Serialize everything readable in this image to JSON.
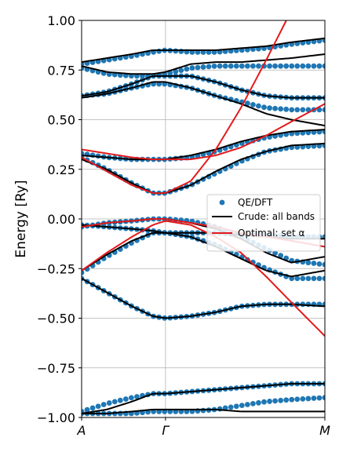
{
  "chart_data": {
    "type": "line",
    "ylabel": "Energy [Ry]",
    "ylim": [
      -1.0,
      1.0
    ],
    "yticks": [
      -1.0,
      -0.75,
      -0.5,
      -0.25,
      0.0,
      0.25,
      0.5,
      0.75,
      1.0
    ],
    "ytick_labels": [
      "−1.00",
      "−0.75",
      "−0.50",
      "−0.25",
      "0.00",
      "0.25",
      "0.50",
      "0.75",
      "1.00"
    ],
    "xlim": [
      0,
      2.9
    ],
    "xticks": [
      0,
      1,
      2.9
    ],
    "xtick_labels": [
      "A",
      "Γ",
      "M"
    ],
    "grid": true,
    "legend_position": "center-right",
    "colors": {
      "dft": "#1f77b4",
      "crude": "#000000",
      "optimal": "#e31a1c"
    },
    "series": [
      {
        "name": "QE/DFT",
        "style": "markers",
        "bands": [
          {
            "x": [
              0,
              0.3,
              0.6,
              0.85,
              1.0,
              1.3,
              1.6,
              1.9,
              2.2,
              2.5,
              2.9
            ],
            "y": [
              -0.3,
              -0.37,
              -0.44,
              -0.49,
              -0.5,
              -0.49,
              -0.47,
              -0.44,
              -0.43,
              -0.43,
              -0.43
            ]
          },
          {
            "x": [
              0,
              0.3,
              0.6,
              0.85,
              1.0,
              1.3,
              1.6,
              1.9,
              2.2,
              2.5,
              2.9
            ],
            "y": [
              -0.27,
              -0.19,
              -0.12,
              -0.07,
              -0.07,
              -0.09,
              -0.13,
              -0.19,
              -0.25,
              -0.3,
              -0.3
            ]
          },
          {
            "x": [
              0,
              0.3,
              0.6,
              0.85,
              1.0,
              1.3,
              1.6,
              1.9,
              2.2,
              2.5,
              2.9
            ],
            "y": [
              -0.04,
              -0.02,
              -0.01,
              0.0,
              0.0,
              -0.01,
              -0.04,
              -0.09,
              -0.15,
              -0.21,
              -0.23
            ]
          },
          {
            "x": [
              0,
              0.3,
              0.6,
              0.85,
              1.0,
              1.3,
              1.6,
              1.9,
              2.2,
              2.5,
              2.9
            ],
            "y": [
              -0.03,
              -0.04,
              -0.05,
              -0.06,
              -0.07,
              -0.07,
              -0.07,
              -0.08,
              -0.08,
              -0.09,
              -0.09
            ]
          },
          {
            "x": [
              0,
              0.3,
              0.6,
              0.85,
              1.0,
              1.3,
              1.6,
              1.9,
              2.2,
              2.5,
              2.9
            ],
            "y": [
              0.31,
              0.25,
              0.18,
              0.13,
              0.13,
              0.17,
              0.23,
              0.29,
              0.34,
              0.36,
              0.37
            ]
          },
          {
            "x": [
              0,
              0.3,
              0.6,
              0.85,
              1.0,
              1.3,
              1.6,
              1.9,
              2.2,
              2.5,
              2.9
            ],
            "y": [
              0.33,
              0.31,
              0.3,
              0.3,
              0.3,
              0.31,
              0.34,
              0.38,
              0.41,
              0.43,
              0.44
            ]
          },
          {
            "x": [
              0,
              0.3,
              0.6,
              0.85,
              1.0,
              1.3,
              1.6,
              1.9,
              2.2,
              2.5,
              2.9
            ],
            "y": [
              0.62,
              0.63,
              0.66,
              0.68,
              0.68,
              0.66,
              0.62,
              0.59,
              0.56,
              0.55,
              0.55
            ]
          },
          {
            "x": [
              0,
              0.3,
              0.6,
              0.85,
              1.0,
              1.3,
              1.6,
              1.9,
              2.2,
              2.5,
              2.9
            ],
            "y": [
              0.62,
              0.64,
              0.68,
              0.72,
              0.72,
              0.72,
              0.69,
              0.65,
              0.62,
              0.61,
              0.61
            ]
          },
          {
            "x": [
              0,
              0.3,
              0.6,
              0.85,
              1.0,
              1.3,
              1.6,
              1.9,
              2.2,
              2.5,
              2.9
            ],
            "y": [
              0.76,
              0.73,
              0.72,
              0.72,
              0.73,
              0.76,
              0.77,
              0.77,
              0.77,
              0.77,
              0.77
            ]
          },
          {
            "x": [
              0,
              0.3,
              0.6,
              0.85,
              1.0,
              1.3,
              1.6,
              1.9,
              2.2,
              2.5,
              2.9
            ],
            "y": [
              0.78,
              0.8,
              0.82,
              0.84,
              0.85,
              0.84,
              0.84,
              0.85,
              0.86,
              0.88,
              0.9
            ]
          },
          {
            "x": [
              0,
              0.3,
              0.6,
              0.85,
              1.0,
              1.3,
              1.6,
              1.9,
              2.2,
              2.5,
              2.9
            ],
            "y": [
              -0.97,
              -0.93,
              -0.9,
              -0.88,
              -0.88,
              -0.87,
              -0.86,
              -0.85,
              -0.84,
              -0.83,
              -0.83
            ]
          },
          {
            "x": [
              0,
              0.3,
              0.6,
              0.85,
              1.0,
              1.3,
              1.6,
              1.9,
              2.2,
              2.5,
              2.9
            ],
            "y": [
              -0.98,
              -0.98,
              -0.98,
              -0.97,
              -0.97,
              -0.97,
              -0.96,
              -0.94,
              -0.92,
              -0.91,
              -0.9
            ]
          }
        ]
      },
      {
        "name": "Crude: all bands",
        "style": "line",
        "bands": [
          {
            "x": [
              0,
              0.3,
              0.6,
              0.85,
              1.0,
              1.3,
              1.6,
              1.9,
              2.2,
              2.5,
              2.9
            ],
            "y": [
              -0.3,
              -0.37,
              -0.44,
              -0.49,
              -0.5,
              -0.49,
              -0.47,
              -0.44,
              -0.43,
              -0.43,
              -0.44
            ]
          },
          {
            "x": [
              0,
              0.3,
              0.6,
              0.85,
              1.0,
              1.3,
              1.6,
              1.9,
              2.2,
              2.5,
              2.9
            ],
            "y": [
              -0.26,
              -0.18,
              -0.11,
              -0.07,
              -0.07,
              -0.09,
              -0.14,
              -0.2,
              -0.26,
              -0.29,
              -0.26
            ]
          },
          {
            "x": [
              0,
              0.3,
              0.6,
              0.85,
              1.0,
              1.3,
              1.6,
              1.9,
              2.2,
              2.5,
              2.9
            ],
            "y": [
              -0.04,
              -0.02,
              -0.01,
              0.0,
              0.0,
              -0.02,
              -0.05,
              -0.1,
              -0.17,
              -0.22,
              -0.19
            ]
          },
          {
            "x": [
              0,
              0.3,
              0.6,
              0.85,
              1.0,
              1.3,
              1.6,
              1.9,
              2.2,
              2.5,
              2.9
            ],
            "y": [
              -0.03,
              -0.04,
              -0.05,
              -0.06,
              -0.07,
              -0.07,
              -0.07,
              -0.08,
              -0.09,
              -0.1,
              -0.1
            ]
          },
          {
            "x": [
              0,
              0.3,
              0.6,
              0.85,
              1.0,
              1.3,
              1.6,
              1.9,
              2.2,
              2.5,
              2.9
            ],
            "y": [
              0.3,
              0.25,
              0.18,
              0.13,
              0.13,
              0.17,
              0.24,
              0.3,
              0.34,
              0.37,
              0.38
            ]
          },
          {
            "x": [
              0,
              0.3,
              0.6,
              0.85,
              1.0,
              1.3,
              1.6,
              1.9,
              2.2,
              2.5,
              2.9
            ],
            "y": [
              0.32,
              0.31,
              0.3,
              0.3,
              0.3,
              0.32,
              0.35,
              0.39,
              0.42,
              0.44,
              0.45
            ]
          },
          {
            "x": [
              0,
              0.3,
              0.6,
              0.85,
              1.0,
              1.3,
              1.6,
              1.9,
              2.2,
              2.5,
              2.9
            ],
            "y": [
              0.61,
              0.63,
              0.66,
              0.69,
              0.69,
              0.66,
              0.62,
              0.58,
              0.53,
              0.5,
              0.47
            ]
          },
          {
            "x": [
              0,
              0.3,
              0.6,
              0.85,
              1.0,
              1.3,
              1.6,
              1.9,
              2.2,
              2.5,
              2.9
            ],
            "y": [
              0.62,
              0.64,
              0.68,
              0.72,
              0.72,
              0.72,
              0.69,
              0.65,
              0.62,
              0.61,
              0.61
            ]
          },
          {
            "x": [
              0,
              0.3,
              0.6,
              0.85,
              1.0,
              1.3,
              1.6,
              1.9,
              2.2,
              2.5,
              2.9
            ],
            "y": [
              0.77,
              0.74,
              0.73,
              0.73,
              0.74,
              0.78,
              0.79,
              0.79,
              0.8,
              0.81,
              0.83
            ]
          },
          {
            "x": [
              0,
              0.3,
              0.6,
              0.85,
              1.0,
              1.3,
              1.6,
              1.9,
              2.2,
              2.5,
              2.9
            ],
            "y": [
              0.79,
              0.81,
              0.83,
              0.85,
              0.85,
              0.85,
              0.85,
              0.86,
              0.87,
              0.89,
              0.91
            ]
          },
          {
            "x": [
              0,
              0.3,
              0.6,
              0.85,
              1.0,
              1.3,
              1.6,
              1.9,
              2.2,
              2.5,
              2.9
            ],
            "y": [
              -0.98,
              -0.96,
              -0.92,
              -0.88,
              -0.88,
              -0.87,
              -0.86,
              -0.85,
              -0.84,
              -0.83,
              -0.83
            ]
          },
          {
            "x": [
              0,
              0.3,
              0.6,
              0.85,
              1.0,
              1.3,
              1.6,
              1.9,
              2.2,
              2.5,
              2.9
            ],
            "y": [
              -0.98,
              -0.98,
              -0.97,
              -0.96,
              -0.96,
              -0.96,
              -0.96,
              -0.97,
              -0.97,
              -0.97,
              -0.97
            ]
          }
        ]
      },
      {
        "name": "Optimal: set α",
        "style": "line",
        "bands": [
          {
            "x": [
              0,
              0.3,
              0.6,
              0.85,
              1.0,
              1.3,
              1.6,
              1.9,
              2.2,
              2.5,
              2.9
            ],
            "y": [
              -0.26,
              -0.17,
              -0.09,
              -0.03,
              -0.01,
              -0.03,
              -0.09,
              -0.17,
              -0.29,
              -0.42,
              -0.59
            ]
          },
          {
            "x": [
              0,
              0.3,
              0.6,
              0.85,
              1.0,
              1.3,
              1.6,
              1.9,
              2.2,
              2.5,
              2.9
            ],
            "y": [
              -0.04,
              -0.02,
              -0.01,
              0.0,
              0.0,
              -0.02,
              -0.04,
              -0.07,
              -0.09,
              -0.11,
              -0.14
            ]
          },
          {
            "x": [
              0,
              0.3,
              0.6,
              0.85,
              1.0,
              1.3,
              1.6,
              1.9,
              2.2,
              2.5,
              2.9
            ],
            "y": [
              0.31,
              0.24,
              0.17,
              0.13,
              0.13,
              0.19,
              0.35,
              0.56,
              0.8,
              1.05,
              1.4
            ]
          },
          {
            "x": [
              0,
              0.3,
              0.6,
              0.85,
              1.0,
              1.3,
              1.6,
              1.9,
              2.2,
              2.5,
              2.9
            ],
            "y": [
              0.35,
              0.33,
              0.31,
              0.3,
              0.3,
              0.3,
              0.32,
              0.36,
              0.42,
              0.49,
              0.58
            ]
          }
        ]
      }
    ]
  }
}
